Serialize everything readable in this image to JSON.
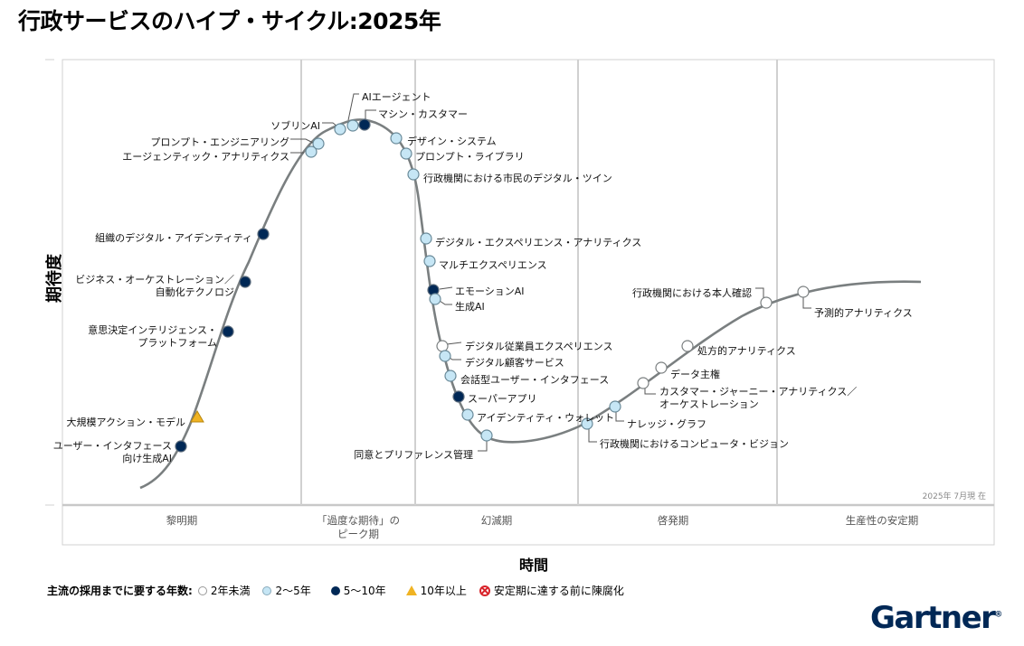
{
  "chart_data": {
    "type": "hype-cycle",
    "title": "行政サービスのハイプ・サイクル：2025年",
    "title_display": "行政サービスのハイプ・サイクル:2025年",
    "xlabel": "時間",
    "ylabel": "期待度",
    "as_of": "2025年 7月現 在",
    "phases": [
      "黎明期",
      "「過度な期待」の\nピーク期",
      "幻滅期",
      "啓発期",
      "生産性の安定期"
    ],
    "legend": {
      "title": "主流の採用までに要する年数:",
      "entries": [
        {
          "key": "lt2",
          "label": "2年未満",
          "color": "#ffffff"
        },
        {
          "key": "2to5",
          "label": "2～5年",
          "color": "#c6e6f5"
        },
        {
          "key": "5to10",
          "label": "5～10年",
          "color": "#002856"
        },
        {
          "key": "gt10",
          "label": "10年以上",
          "color": "#f0b323"
        },
        {
          "key": "obsolete",
          "label": "安定期に達する前に陳腐化",
          "color": "#d8232a"
        }
      ]
    },
    "points": [
      {
        "name": "ユーザー・インタフェース\n向け生成AI",
        "phase": "黎明期",
        "years": "5to10"
      },
      {
        "name": "大規模アクション・モデル",
        "phase": "黎明期",
        "years": "gt10"
      },
      {
        "name": "意思決定インテリジェンス・\nプラットフォーム",
        "phase": "黎明期",
        "years": "5to10"
      },
      {
        "name": "ビジネス・オーケストレーション／\n自動化テクノロジ",
        "phase": "黎明期",
        "years": "5to10"
      },
      {
        "name": "組織のデジタル・アイデンティティ",
        "phase": "黎明期",
        "years": "5to10"
      },
      {
        "name": "エージェンティック・アナリティクス",
        "phase": "「過度な期待」のピーク期",
        "years": "2to5"
      },
      {
        "name": "プロンプト・エンジニアリング",
        "phase": "「過度な期待」のピーク期",
        "years": "2to5"
      },
      {
        "name": "ソブリンAI",
        "phase": "「過度な期待」のピーク期",
        "years": "2to5"
      },
      {
        "name": "AIエージェント",
        "phase": "「過度な期待」のピーク期",
        "years": "2to5"
      },
      {
        "name": "マシン・カスタマー",
        "phase": "「過度な期待」のピーク期",
        "years": "5to10"
      },
      {
        "name": "デザイン・システム",
        "phase": "「過度な期待」のピーク期",
        "years": "2to5"
      },
      {
        "name": "プロンプト・ライブラリ",
        "phase": "「過度な期待」のピーク期",
        "years": "2to5"
      },
      {
        "name": "行政機関における市民のデジタル・ツイン",
        "phase": "幻滅期",
        "years": "2to5"
      },
      {
        "name": "デジタル・エクスペリエンス・アナリティクス",
        "phase": "幻滅期",
        "years": "2to5"
      },
      {
        "name": "マルチエクスペリエンス",
        "phase": "幻滅期",
        "years": "2to5"
      },
      {
        "name": "エモーションAI",
        "phase": "幻滅期",
        "years": "5to10"
      },
      {
        "name": "生成AI",
        "phase": "幻滅期",
        "years": "2to5"
      },
      {
        "name": "デジタル従業員エクスペリエンス",
        "phase": "幻滅期",
        "years": "lt2"
      },
      {
        "name": "デジタル顧客サービス",
        "phase": "幻滅期",
        "years": "2to5"
      },
      {
        "name": "会話型ユーザー・インタフェース",
        "phase": "幻滅期",
        "years": "2to5"
      },
      {
        "name": "スーパーアプリ",
        "phase": "幻滅期",
        "years": "5to10"
      },
      {
        "name": "アイデンティティ・ウォレット",
        "phase": "幻滅期",
        "years": "2to5"
      },
      {
        "name": "同意とプリファレンス管理",
        "phase": "幻滅期",
        "years": "2to5"
      },
      {
        "name": "行政機関におけるコンピュータ・ビジョン",
        "phase": "啓発期",
        "years": "2to5"
      },
      {
        "name": "ナレッジ・グラフ",
        "phase": "啓発期",
        "years": "2to5"
      },
      {
        "name": "カスタマー・ジャーニー・アナリティクス／\nオーケストレーション",
        "phase": "啓発期",
        "years": "lt2"
      },
      {
        "name": "データ主権",
        "phase": "啓発期",
        "years": "lt2"
      },
      {
        "name": "処方的アナリティクス",
        "phase": "啓発期",
        "years": "lt2"
      },
      {
        "name": "行政機関における本人確認",
        "phase": "啓発期",
        "years": "lt2"
      },
      {
        "name": "予測的アナリティクス",
        "phase": "生産性の安定期",
        "years": "lt2"
      }
    ]
  },
  "brand": {
    "logo": "Gartner",
    "registered": "®"
  }
}
